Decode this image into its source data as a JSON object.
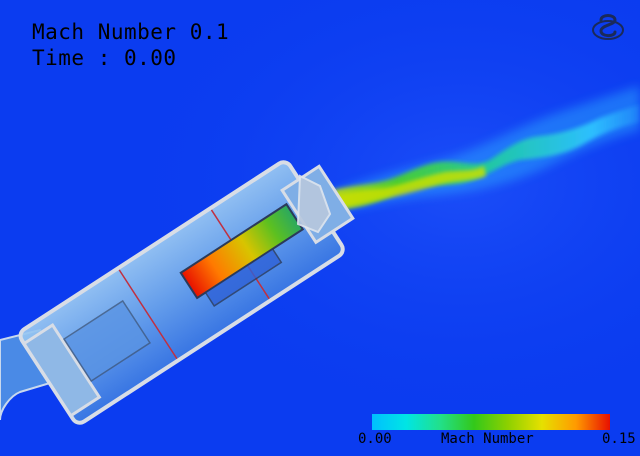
{
  "overlay": {
    "line1": "Mach Number 0.1",
    "line2": "Time : 0.00"
  },
  "colorbar": {
    "min_label": "0.00",
    "title": "Mach Number",
    "max_label": "0.15",
    "colors": [
      "#00bfff",
      "#00e5e5",
      "#22e08a",
      "#33c81a",
      "#8ed000",
      "#e6e000",
      "#ff9a00",
      "#e81000"
    ]
  },
  "palette": {
    "background": "#0b3cf0",
    "body": "#7fb8ee",
    "hot": "#e81000",
    "jet": "#33c81a"
  },
  "icons": [
    "logo-icon"
  ]
}
